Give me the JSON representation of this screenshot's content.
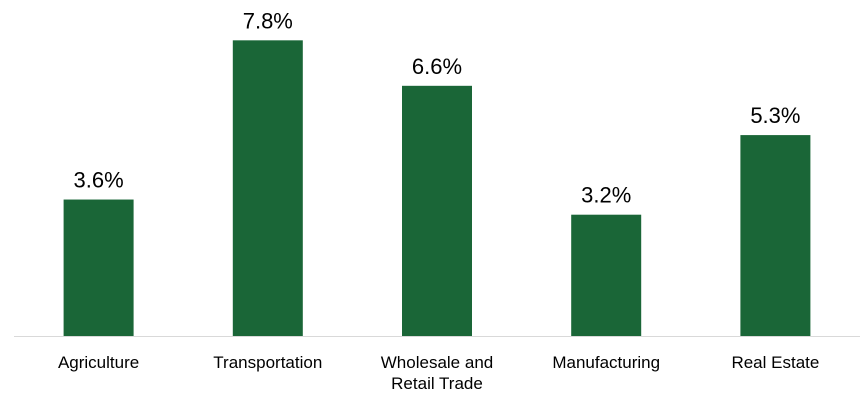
{
  "chart_data": {
    "type": "bar",
    "title": "",
    "xlabel": "",
    "ylabel": "",
    "categories": [
      [
        "Agriculture"
      ],
      [
        "Transportation"
      ],
      [
        "Wholesale and",
        "Retail Trade"
      ],
      [
        "Manufacturing"
      ],
      [
        "Real Estate"
      ]
    ],
    "values": [
      3.6,
      7.8,
      6.6,
      3.2,
      5.3
    ],
    "value_labels": [
      "3.6%",
      "7.8%",
      "6.6%",
      "3.2%",
      "5.3%"
    ],
    "ylim": [
      0,
      8.6
    ],
    "grid": false,
    "legend": "none",
    "bar_color": "#1a6637",
    "axis_color": "#d9d9d9"
  }
}
